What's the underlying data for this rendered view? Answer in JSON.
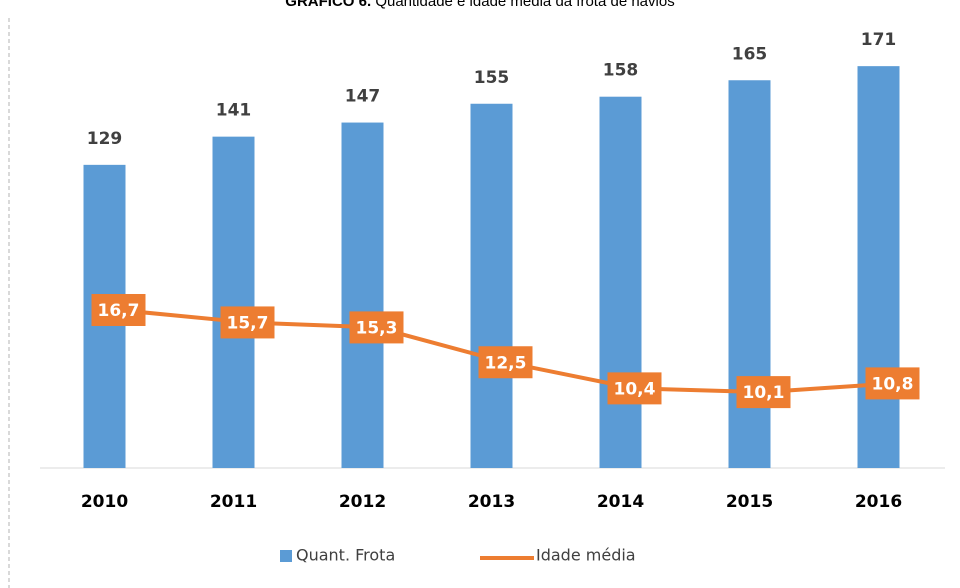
{
  "chart_data": {
    "type": "bar-line",
    "title_label": "GRÁFICO 6.",
    "title": "Quantidade e idade média da frota de navios",
    "categories": [
      "2010",
      "2011",
      "2012",
      "2013",
      "2014",
      "2015",
      "2016"
    ],
    "series": [
      {
        "name": "Quant. Frota",
        "type": "bar",
        "color": "#5b9bd5",
        "values": [
          129,
          141,
          147,
          155,
          158,
          165,
          171
        ]
      },
      {
        "name": "Idade média",
        "type": "line",
        "axis": "y2",
        "color": "#ed7d31",
        "values": [
          16.7,
          15.7,
          15.3,
          12.5,
          10.4,
          10.1,
          10.8
        ],
        "value_labels": [
          "16,7",
          "15,7",
          "15,3",
          "12,5",
          "10,4",
          "10,1",
          "10,8"
        ]
      }
    ],
    "ylim": [
      0,
      180
    ],
    "y2lim": [
      4,
      38
    ],
    "legend": "bottom"
  }
}
